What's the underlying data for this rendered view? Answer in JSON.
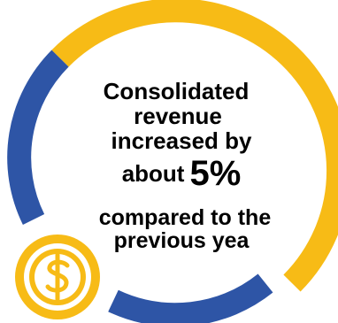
{
  "colors": {
    "accent_yellow": "#F7BB16",
    "accent_blue": "#2E55A6",
    "text": "#000000",
    "background": "#FFFFFF"
  },
  "headline": {
    "line1": "Consolidated",
    "line2": "revenue",
    "line3": "increased by",
    "line4_prefix": "about",
    "highlight_value": "5%",
    "line5": "compared to the",
    "line6": "previous yea"
  },
  "icons": {
    "coin": "dollar-coin-icon"
  }
}
